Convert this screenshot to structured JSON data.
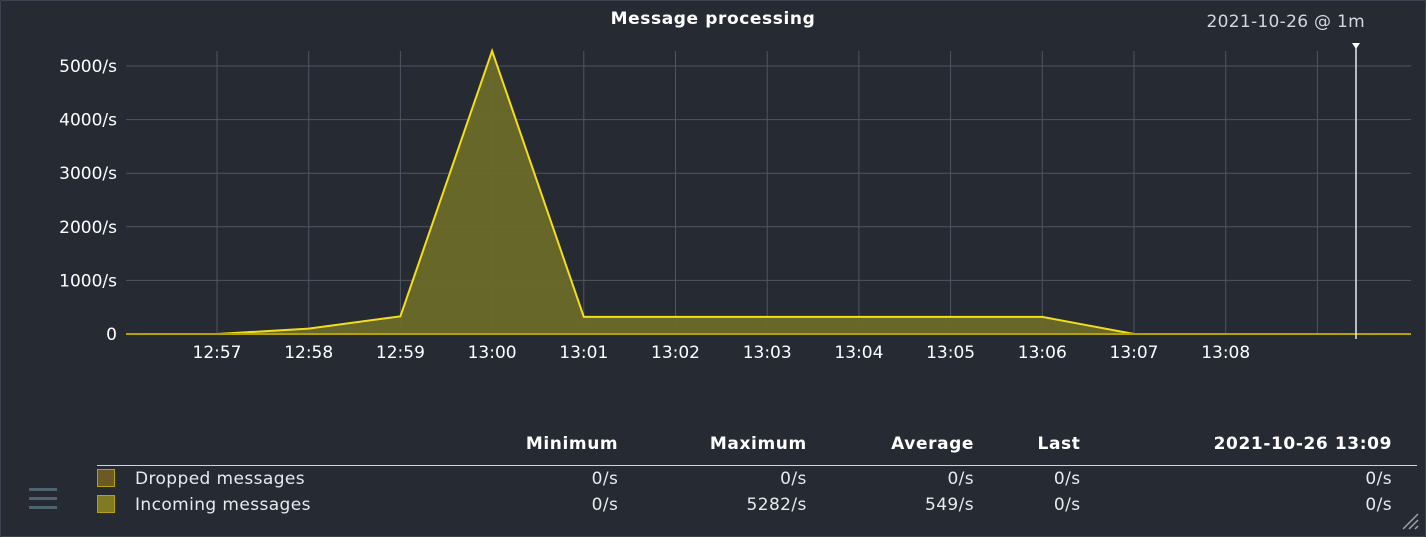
{
  "title": "Message processing",
  "period": "2021-10-26 @ 1m",
  "colors": {
    "background": "#252a33",
    "grid": "#4e5663",
    "line": "#f4de1c",
    "fill": "#6b6a2a",
    "dropped_swatch": "#6b5a24",
    "incoming_swatch": "#7f7a23"
  },
  "chart_data": {
    "type": "area",
    "title": "Message processing",
    "y_ticks": [
      "0",
      "1000/s",
      "2000/s",
      "3000/s",
      "4000/s",
      "5000/s"
    ],
    "x_ticks": [
      "12:57",
      "12:58",
      "12:59",
      "13:00",
      "13:01",
      "13:02",
      "13:03",
      "13:04",
      "13:05",
      "13:06",
      "13:07",
      "13:08"
    ],
    "ylim": [
      0,
      5300
    ],
    "xlim_minutes": [
      -1.0,
      12.3
    ],
    "series": [
      {
        "name": "Incoming messages",
        "x": [
          -1.0,
          0.0,
          1.0,
          2.0,
          3.0,
          4.0,
          5.0,
          6.0,
          7.0,
          8.0,
          9.0,
          9.5,
          10.0,
          11.0,
          12.0,
          12.3
        ],
        "values": [
          0,
          0,
          100,
          330,
          5282,
          320,
          320,
          320,
          320,
          320,
          320,
          160,
          0,
          0,
          0,
          0
        ]
      },
      {
        "name": "Dropped messages",
        "x": [
          -1.0,
          12.3
        ],
        "values": [
          0,
          0
        ]
      }
    ],
    "grid": true
  },
  "legend": {
    "headers": [
      "Minimum",
      "Maximum",
      "Average",
      "Last",
      "2021-10-26 13:09"
    ],
    "rows": [
      {
        "name": "Dropped messages",
        "values": [
          "0/s",
          "0/s",
          "0/s",
          "0/s",
          "0/s"
        ]
      },
      {
        "name": "Incoming messages",
        "values": [
          "0/s",
          "5282/s",
          "549/s",
          "0/s",
          "0/s"
        ]
      }
    ]
  },
  "icons": {
    "menu": "hamburger-menu-icon",
    "resize": "resize-handle-icon"
  }
}
